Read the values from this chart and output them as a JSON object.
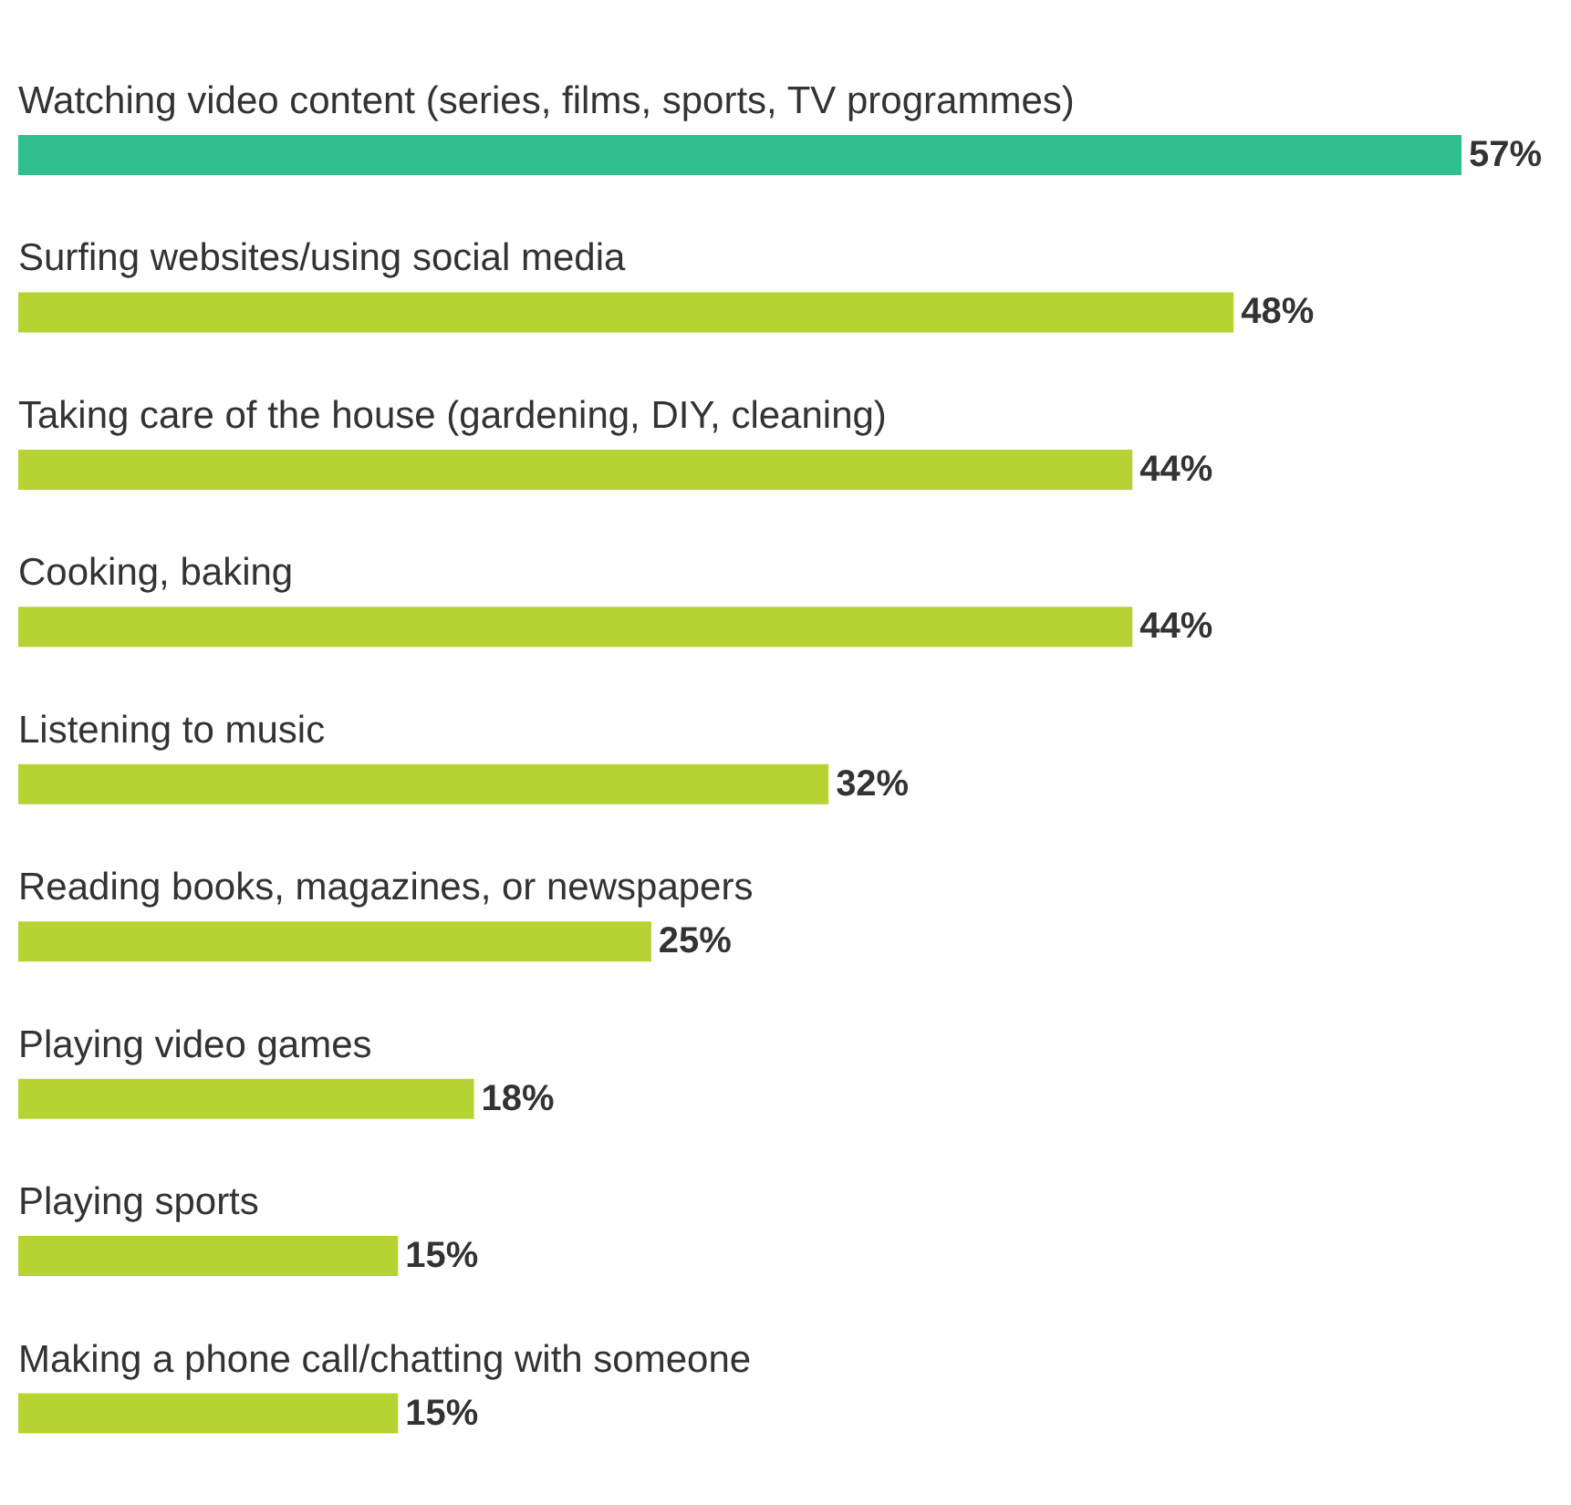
{
  "chart_data": {
    "type": "bar",
    "orientation": "horizontal",
    "categories": [
      "Watching video content (series, films, sports, TV programmes)",
      "Surfing websites/using social media",
      "Taking care of the house (gardening, DIY, cleaning)",
      "Cooking, baking",
      "Listening to music",
      "Reading books, magazines, or newspapers",
      "Playing video games",
      "Playing sports",
      "Making a phone call/chatting with someone"
    ],
    "values": [
      57,
      48,
      44,
      44,
      32,
      25,
      18,
      15,
      15
    ],
    "colors": [
      "#2fbf8e",
      "#b5d433",
      "#b5d433",
      "#b5d433",
      "#b5d433",
      "#b5d433",
      "#b5d433",
      "#b5d433",
      "#b5d433"
    ],
    "value_labels": [
      "57%",
      "48%",
      "44%",
      "44%",
      "32%",
      "25%",
      "18%",
      "15%",
      "15%"
    ],
    "grid": false,
    "legend": false
  }
}
